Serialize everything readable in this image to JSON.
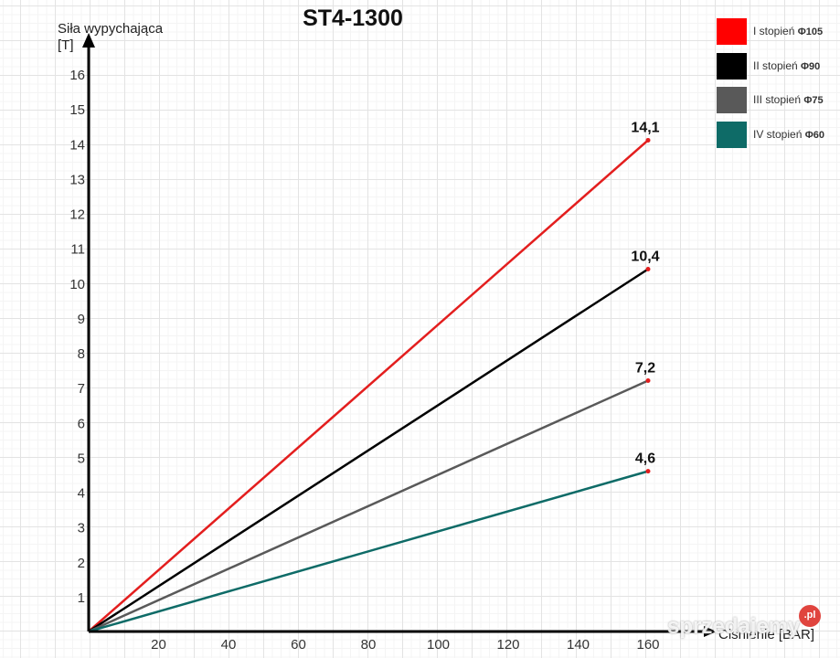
{
  "chart_data": {
    "type": "line",
    "title": "ST4-1300",
    "xlabel": "Ciśnienie [BAR]",
    "ylabel": "Siła wypychająca [T]",
    "xlim": [
      0,
      160
    ],
    "ylim": [
      0,
      16
    ],
    "x_ticks": [
      20,
      40,
      60,
      80,
      100,
      120,
      140,
      160
    ],
    "y_ticks": [
      1,
      2,
      3,
      4,
      5,
      6,
      7,
      8,
      9,
      10,
      11,
      12,
      13,
      14,
      15,
      16
    ],
    "grid": true,
    "legend_position": "top-right",
    "series": [
      {
        "name": "I stopień Φ105",
        "color": "#e31e1e",
        "x": [
          0,
          160
        ],
        "y": [
          0,
          14.1
        ],
        "end_label": "14,1"
      },
      {
        "name": "II stopień Φ90",
        "color": "#000000",
        "x": [
          0,
          160
        ],
        "y": [
          0,
          10.4
        ],
        "end_label": "10,4"
      },
      {
        "name": "III stopień Φ75",
        "color": "#595959",
        "x": [
          0,
          160
        ],
        "y": [
          0,
          7.2
        ],
        "end_label": "7,2"
      },
      {
        "name": "IV stopień Φ60",
        "color": "#0e6b67",
        "x": [
          0,
          160
        ],
        "y": [
          0,
          4.6
        ],
        "end_label": "4,6"
      }
    ]
  },
  "title": "ST4-1300",
  "ylabel_line1": "Siła wypychająca",
  "ylabel_line2": "[T]",
  "xlabel": "Ciśnienie [BAR]",
  "legend": [
    {
      "label": "I stopień ",
      "sub": "Φ105",
      "color": "#ff0000"
    },
    {
      "label": "II stopień ",
      "sub": "Φ90",
      "color": "#000000"
    },
    {
      "label": "III stopień ",
      "sub": "Φ75",
      "color": "#595959"
    },
    {
      "label": "IV stopień ",
      "sub": "Φ60",
      "color": "#0e6b67"
    }
  ],
  "watermark": {
    "text": "sprzedajemy",
    "badge": ".pl"
  }
}
